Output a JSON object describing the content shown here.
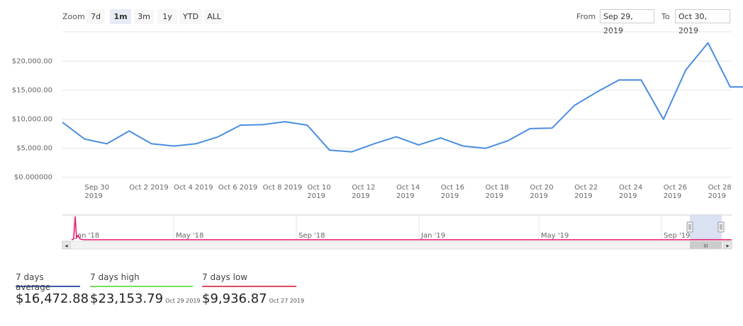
{
  "toolbar": {
    "zoom_label": "Zoom",
    "buttons": [
      "7d",
      "1m",
      "3m",
      "1y",
      "YTD",
      "ALL"
    ],
    "active_button": "1m",
    "from_label": "From",
    "from_value": "Sep 29, 2019",
    "to_label": "To",
    "to_value": "Oct 30, 2019"
  },
  "colors": {
    "line": "#4a8de0",
    "grid": "#e6e6e6",
    "navigator_line": "#e8166e",
    "navigator_mask": "#d4dcf0",
    "avg": "#3a5ba8",
    "high": "#73e05a",
    "low": "#e04a5f"
  },
  "chart_data": {
    "type": "line",
    "title": "",
    "xlabel": "",
    "ylabel": "",
    "ylim": [
      0,
      25000
    ],
    "y_ticks": [
      "$0.000000",
      "$5,000.00",
      "$10,000.00",
      "$15,000.00",
      "$20,000.00"
    ],
    "y_tick_values": [
      0,
      5000,
      10000,
      15000,
      20000
    ],
    "x_ticks": [
      {
        "line1": "Sep 30",
        "line2": "2019",
        "day": 1
      },
      {
        "line1": "Oct 2 2019",
        "line2": "",
        "day": 3
      },
      {
        "line1": "Oct 4 2019",
        "line2": "",
        "day": 5
      },
      {
        "line1": "Oct 6 2019",
        "line2": "",
        "day": 7
      },
      {
        "line1": "Oct 8 2019",
        "line2": "",
        "day": 9
      },
      {
        "line1": "Oct 10",
        "line2": "2019",
        "day": 11
      },
      {
        "line1": "Oct 12",
        "line2": "2019",
        "day": 13
      },
      {
        "line1": "Oct 14",
        "line2": "2019",
        "day": 15
      },
      {
        "line1": "Oct 16",
        "line2": "2019",
        "day": 17
      },
      {
        "line1": "Oct 18",
        "line2": "2019",
        "day": 19
      },
      {
        "line1": "Oct 20",
        "line2": "2019",
        "day": 21
      },
      {
        "line1": "Oct 22",
        "line2": "2019",
        "day": 23
      },
      {
        "line1": "Oct 24",
        "line2": "2019",
        "day": 25
      },
      {
        "line1": "Oct 26",
        "line2": "2019",
        "day": 27
      },
      {
        "line1": "Oct 28",
        "line2": "2019",
        "day": 29
      },
      {
        "line1": "Oct 30",
        "line2": "2019",
        "day": 31
      }
    ],
    "series": [
      {
        "name": "Price",
        "x": [
          0,
          1,
          2,
          3,
          4,
          5,
          6,
          7,
          8,
          9,
          10,
          11,
          12,
          13,
          14,
          15,
          16,
          17,
          18,
          19,
          20,
          21,
          22,
          23,
          24,
          25,
          26,
          27,
          28,
          29,
          30,
          31
        ],
        "values": [
          9400,
          6500,
          5700,
          7900,
          5700,
          5300,
          5700,
          6900,
          8900,
          9000,
          9500,
          8900,
          4600,
          4300,
          5700,
          6900,
          5500,
          6700,
          5300,
          4900,
          6200,
          8300,
          8400,
          12300,
          14600,
          16700,
          16700,
          9900,
          18400,
          23100,
          15500,
          15500
        ]
      }
    ]
  },
  "navigator": {
    "labels": [
      "Jan '18",
      "May '18",
      "Sep '18",
      "Jan '19",
      "May '19",
      "Sep '19"
    ],
    "scroll_left": "◂",
    "scroll_right": "▸",
    "grip": "III",
    "handle_grip": "||"
  },
  "stats": {
    "avg_label": "7 days average",
    "avg_value": "$16,472.88",
    "high_label": "7 days high",
    "high_value": "$23,153.79",
    "high_date": "Oct 29 2019",
    "low_label": "7 days low",
    "low_value": "$9,936.87",
    "low_date": "Oct 27 2019"
  }
}
